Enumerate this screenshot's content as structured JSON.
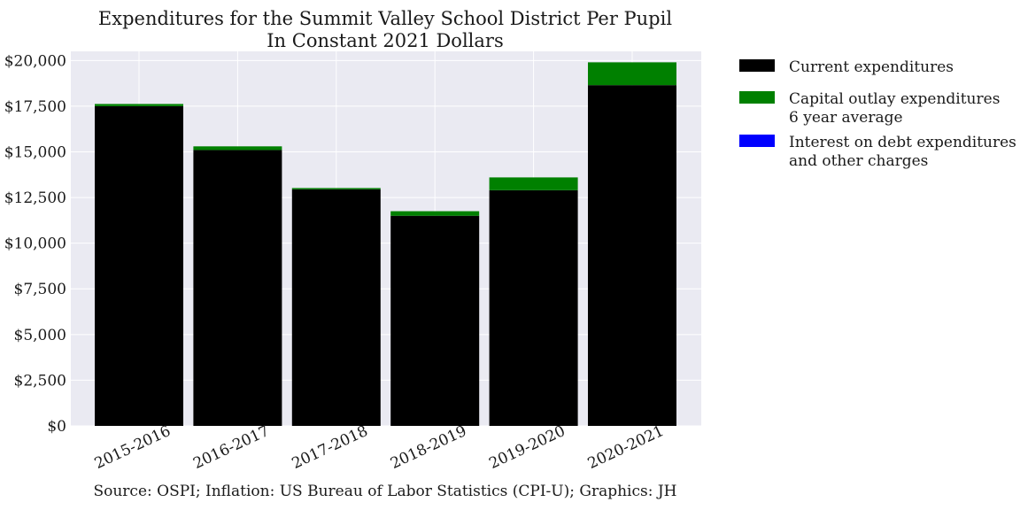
{
  "chart_data": {
    "type": "bar",
    "stacked": true,
    "title": "Expenditures for the Summit Valley School District Per Pupil",
    "subtitle": "In Constant 2021 Dollars",
    "xlabel": "",
    "ylabel": "",
    "categories": [
      "2015-2016",
      "2016-2017",
      "2017-2018",
      "2018-2019",
      "2019-2020",
      "2020-2021"
    ],
    "series": [
      {
        "name": "Current expenditures",
        "color": "#000000",
        "values": [
          17500,
          15100,
          12950,
          11500,
          12900,
          18650
        ]
      },
      {
        "name": "Capital outlay expenditures\n6 year average",
        "color": "#008000",
        "values": [
          120,
          200,
          70,
          250,
          700,
          1250
        ]
      },
      {
        "name": "Interest on debt expenditures\nand other charges",
        "color": "#0000ff",
        "values": [
          0,
          0,
          0,
          0,
          0,
          0
        ]
      }
    ],
    "ylim": [
      0,
      20500
    ],
    "yticks": [
      0,
      2500,
      5000,
      7500,
      10000,
      12500,
      15000,
      17500,
      20000
    ],
    "ytick_labels": [
      "$0",
      "$2,500",
      "$5,000",
      "$7,500",
      "$10,000",
      "$12,500",
      "$15,000",
      "$17,500",
      "$20,000"
    ],
    "grid": true,
    "legend_position": "outside-right",
    "background": "#eaeaf2",
    "source": "Source: OSPI; Inflation: US Bureau of Labor Statistics (CPI-U); Graphics: JH"
  }
}
